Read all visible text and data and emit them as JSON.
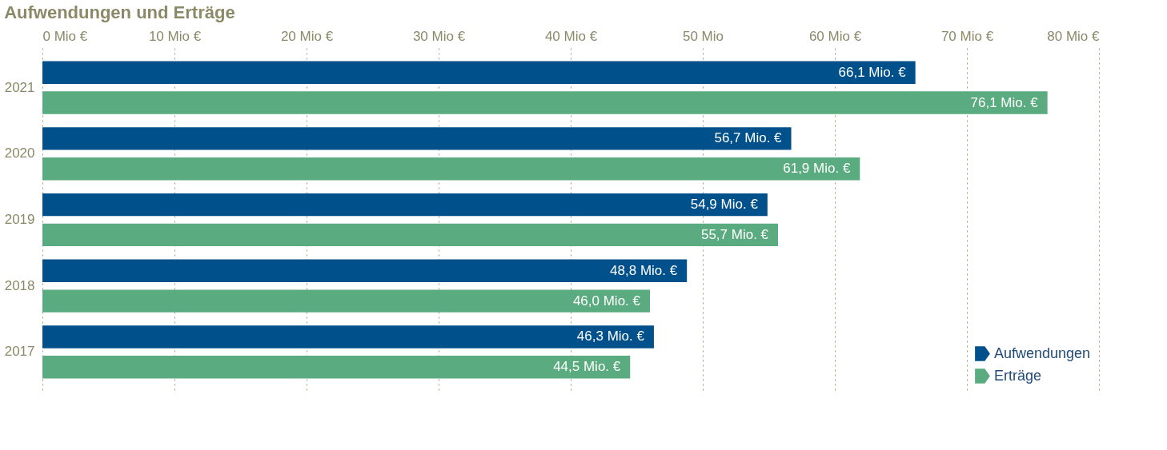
{
  "chart_data": {
    "type": "bar",
    "orientation": "horizontal",
    "title": "Aufwendungen und Erträge",
    "categories": [
      "2021",
      "2020",
      "2019",
      "2018",
      "2017"
    ],
    "series": [
      {
        "name": "Aufwendungen",
        "color": "#00508c",
        "values": [
          66.1,
          56.7,
          54.9,
          48.8,
          46.3
        ],
        "value_labels": [
          "66,1 Mio. €",
          "56,7 Mio. €",
          "54,9 Mio. €",
          "48,8 Mio. €",
          "46,3 Mio. €"
        ]
      },
      {
        "name": "Erträge",
        "color": "#5aab7f",
        "values": [
          76.1,
          61.9,
          55.7,
          46.0,
          44.5
        ],
        "value_labels": [
          "76,1 Mio. €",
          "61,9 Mio. €",
          "55,7 Mio. €",
          "46,0 Mio. €",
          "44,5 Mio. €"
        ]
      }
    ],
    "xlim": [
      0,
      80
    ],
    "xticks": [
      {
        "value": 0,
        "label": "0 Mio €"
      },
      {
        "value": 10,
        "label": "10 Mio €"
      },
      {
        "value": 20,
        "label": "20 Mio €"
      },
      {
        "value": 30,
        "label": "30 Mio €"
      },
      {
        "value": 40,
        "label": "40 Mio €"
      },
      {
        "value": 50,
        "label": "50 Mio"
      },
      {
        "value": 60,
        "label": "60 Mio €"
      },
      {
        "value": 70,
        "label": "70 Mio €"
      },
      {
        "value": 80,
        "label": "80 Mio €"
      }
    ],
    "grid": "x",
    "legend": "bottom right"
  }
}
